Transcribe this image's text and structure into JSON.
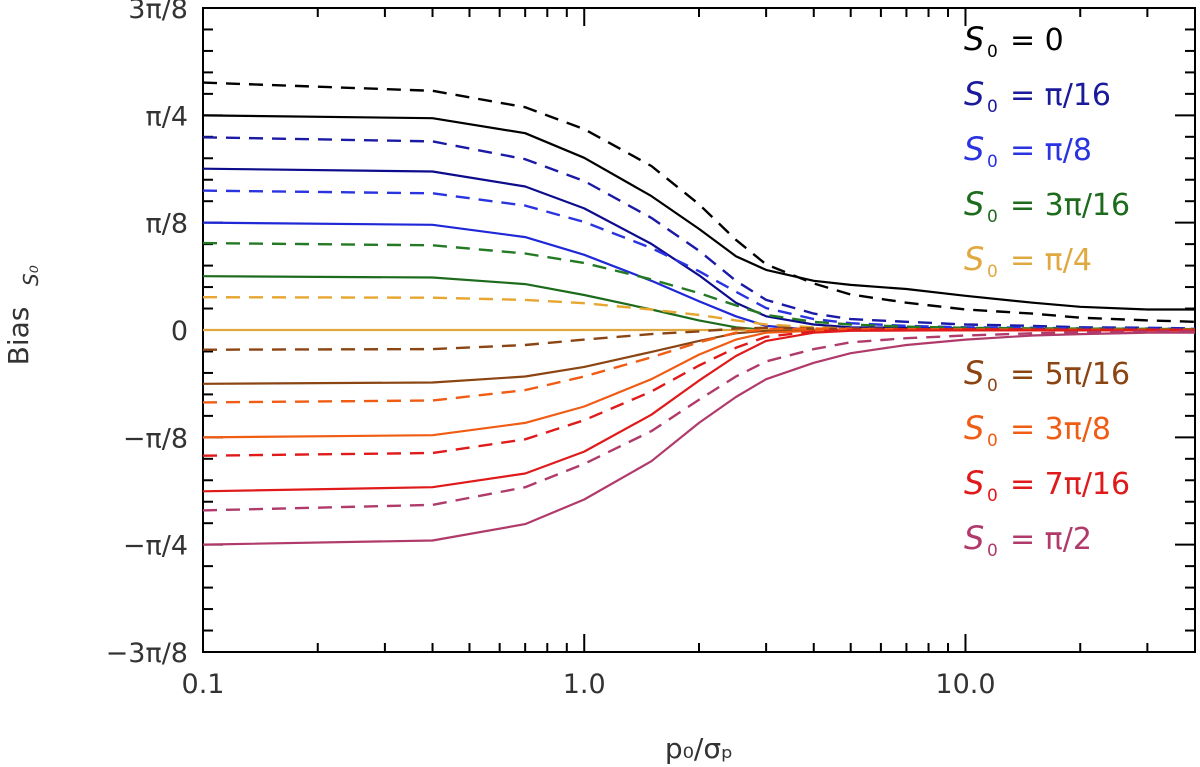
{
  "chart_data": {
    "type": "line",
    "title": "",
    "xlabel": "p₀/σₚ",
    "ylabel": "Bias",
    "ylabel_subscript": "S₀",
    "xscale": "log",
    "xlim": [
      0.1,
      40
    ],
    "ylim": [
      -1.1781,
      1.1781
    ],
    "xticks": [
      {
        "value": 0.1,
        "label": "0.1"
      },
      {
        "value": 1.0,
        "label": "1.0"
      },
      {
        "value": 10.0,
        "label": "10.0"
      }
    ],
    "yticks": [
      {
        "value": 1.1781,
        "label": "3π/8"
      },
      {
        "value": 0.7854,
        "label": "π/4"
      },
      {
        "value": 0.3927,
        "label": "π/8"
      },
      {
        "value": 0,
        "label": "0"
      },
      {
        "value": -0.3927,
        "label": "−π/8"
      },
      {
        "value": -0.7854,
        "label": "−π/4"
      },
      {
        "value": -1.1781,
        "label": "−3π/8"
      }
    ],
    "x": [
      0.1,
      0.4,
      0.7,
      1.0,
      1.5,
      2.0,
      2.5,
      3.0,
      4.0,
      5.0,
      7.0,
      10.0,
      15.0,
      20.0,
      30.0,
      40.0
    ],
    "series": [
      {
        "name": "S0 = 0 (solid)",
        "color": "#000000",
        "dash": false,
        "values": [
          0.785,
          0.775,
          0.72,
          0.63,
          0.49,
          0.37,
          0.27,
          0.22,
          0.18,
          0.165,
          0.15,
          0.125,
          0.1,
          0.085,
          0.075,
          0.075
        ]
      },
      {
        "name": "S0 = 0 (dashed)",
        "color": "#000000",
        "dash": true,
        "values": [
          0.905,
          0.875,
          0.815,
          0.735,
          0.6,
          0.46,
          0.33,
          0.24,
          0.17,
          0.13,
          0.1,
          0.075,
          0.06,
          0.045,
          0.035,
          0.03
        ]
      },
      {
        "name": "S0 = π/16 (solid)",
        "color": "#0c0c8c",
        "dash": false,
        "values": [
          0.59,
          0.58,
          0.525,
          0.445,
          0.315,
          0.2,
          0.1,
          0.05,
          0.02,
          0.01,
          0.008,
          0.006,
          0.004,
          0.003,
          0.003,
          0.003
        ]
      },
      {
        "name": "S0 = π/16 (dashed)",
        "color": "#1a1aa6",
        "dash": true,
        "values": [
          0.705,
          0.69,
          0.625,
          0.545,
          0.41,
          0.29,
          0.18,
          0.11,
          0.06,
          0.04,
          0.03,
          0.02,
          0.015,
          0.01,
          0.008,
          0.006
        ]
      },
      {
        "name": "S0 = π/8 (solid)",
        "color": "#1f28d6",
        "dash": false,
        "values": [
          0.393,
          0.385,
          0.34,
          0.275,
          0.18,
          0.105,
          0.05,
          0.015,
          0.0,
          0.0,
          0.0,
          0.0,
          0.0,
          0.0,
          0.0,
          0.0
        ]
      },
      {
        "name": "S0 = π/8 (dashed)",
        "color": "#2a33e0",
        "dash": true,
        "values": [
          0.51,
          0.5,
          0.455,
          0.395,
          0.3,
          0.215,
          0.14,
          0.08,
          0.04,
          0.025,
          0.015,
          0.01,
          0.008,
          0.006,
          0.005,
          0.004
        ]
      },
      {
        "name": "S0 = 3π/16 (solid)",
        "color": "#1d6b1d",
        "dash": false,
        "values": [
          0.197,
          0.192,
          0.168,
          0.128,
          0.075,
          0.035,
          0.01,
          0.0,
          0.0,
          0.0,
          0.0,
          0.0,
          0.0,
          0.0,
          0.0,
          0.0
        ]
      },
      {
        "name": "S0 = 3π/16 (dashed)",
        "color": "#247a24",
        "dash": true,
        "values": [
          0.318,
          0.31,
          0.28,
          0.245,
          0.185,
          0.135,
          0.09,
          0.055,
          0.03,
          0.02,
          0.012,
          0.008,
          0.006,
          0.005,
          0.004,
          0.003
        ]
      },
      {
        "name": "S0 = π/4 (solid)",
        "color": "#e0a840",
        "dash": false,
        "values": [
          0.0,
          0.0,
          0.0,
          0.0,
          0.0,
          0.0,
          0.0,
          0.0,
          0.0,
          0.0,
          0.0,
          0.0,
          0.0,
          0.0,
          0.0,
          0.0
        ]
      },
      {
        "name": "S0 = π/4 (dashed)",
        "color": "#e6a630",
        "dash": true,
        "values": [
          0.12,
          0.118,
          0.11,
          0.098,
          0.075,
          0.055,
          0.035,
          0.02,
          0.01,
          0.005,
          0.003,
          0.002,
          0.001,
          0.001,
          0.001,
          0.001
        ]
      },
      {
        "name": "S0 = 5π/16 (solid)",
        "color": "#8b4513",
        "dash": false,
        "values": [
          -0.197,
          -0.192,
          -0.17,
          -0.135,
          -0.08,
          -0.04,
          -0.012,
          -0.003,
          -0.002,
          -0.001,
          -0.001,
          -0.001,
          -0.001,
          -0.001,
          -0.001,
          -0.001
        ]
      },
      {
        "name": "S0 = 5π/16 (dashed)",
        "color": "#8b4513",
        "dash": true,
        "values": [
          -0.072,
          -0.07,
          -0.055,
          -0.035,
          -0.015,
          -0.005,
          0.005,
          0.008,
          0.006,
          0.004,
          0.003,
          0.002,
          0.001,
          0.001,
          0.001,
          0.001
        ]
      },
      {
        "name": "S0 = 3π/8 (solid)",
        "color": "#f05c14",
        "dash": false,
        "values": [
          -0.393,
          -0.385,
          -0.34,
          -0.28,
          -0.18,
          -0.09,
          -0.035,
          -0.01,
          -0.003,
          -0.001,
          -0.001,
          -0.001,
          -0.001,
          -0.001,
          -0.001,
          -0.001
        ]
      },
      {
        "name": "S0 = 3π/8 (dashed)",
        "color": "#f05c14",
        "dash": true,
        "values": [
          -0.265,
          -0.258,
          -0.22,
          -0.17,
          -0.1,
          -0.045,
          -0.01,
          0.003,
          0.005,
          0.004,
          0.003,
          0.002,
          0.001,
          0.001,
          0.001,
          0.001
        ]
      },
      {
        "name": "S0 = 7π/16 (solid)",
        "color": "#e01a1a",
        "dash": false,
        "values": [
          -0.59,
          -0.575,
          -0.525,
          -0.445,
          -0.31,
          -0.185,
          -0.095,
          -0.04,
          -0.01,
          -0.003,
          -0.002,
          -0.001,
          -0.001,
          -0.001,
          -0.001,
          -0.001
        ]
      },
      {
        "name": "S0 = 7π/16 (dashed)",
        "color": "#e01a1a",
        "dash": true,
        "values": [
          -0.46,
          -0.45,
          -0.4,
          -0.33,
          -0.225,
          -0.13,
          -0.065,
          -0.025,
          -0.005,
          0.0,
          0.002,
          0.002,
          0.002,
          0.001,
          0.001,
          0.001
        ]
      },
      {
        "name": "S0 = π/2 (solid)",
        "color": "#b03a6a",
        "dash": false,
        "values": [
          -0.785,
          -0.77,
          -0.71,
          -0.62,
          -0.48,
          -0.34,
          -0.245,
          -0.18,
          -0.12,
          -0.085,
          -0.055,
          -0.035,
          -0.02,
          -0.015,
          -0.01,
          -0.01
        ]
      },
      {
        "name": "S0 = π/2 (dashed)",
        "color": "#b03a6a",
        "dash": true,
        "values": [
          -0.66,
          -0.64,
          -0.575,
          -0.49,
          -0.37,
          -0.255,
          -0.17,
          -0.115,
          -0.07,
          -0.045,
          -0.03,
          -0.02,
          -0.012,
          -0.008,
          -0.006,
          -0.005
        ]
      }
    ],
    "legend_position": "right",
    "legend": [
      {
        "label": "= 0",
        "color": "#000000"
      },
      {
        "label": "= π/16",
        "color": "#1a1a9a"
      },
      {
        "label": "= π/8",
        "color": "#2a33e0"
      },
      {
        "label": "= 3π/16",
        "color": "#1d6b1d"
      },
      {
        "label": "= π/4",
        "color": "#e0a840"
      },
      {
        "label": "= 5π/16",
        "color": "#8b4513"
      },
      {
        "label": "= 3π/8",
        "color": "#f05c14"
      },
      {
        "label": "= 7π/16",
        "color": "#e01a1a"
      },
      {
        "label": "= π/2",
        "color": "#b03a6a"
      }
    ],
    "legend_symbol": "S",
    "legend_symbol_subscript": "0"
  }
}
